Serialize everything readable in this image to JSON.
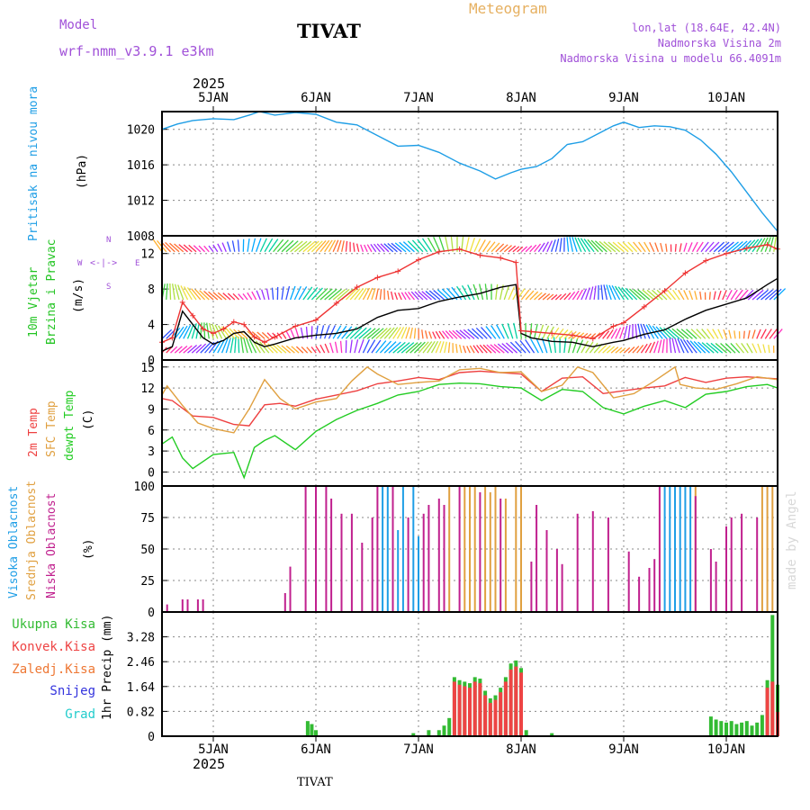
{
  "header": {
    "model_label": "Model",
    "model_name": "wrf-nmm_v3.9.1  e3km",
    "station": "TIVAT",
    "title": "Meteogram",
    "coords": "lon,lat (18.64E, 42.4N)",
    "elevation": "Nadmorska Visina 2m",
    "model_elevation": "Nadmorska Visina u modelu 66.4091m",
    "footer_station": "TIVAT",
    "watermark": "made by Angel"
  },
  "colors": {
    "model": "#a050d8",
    "title": "#e6b060",
    "station": "#000000",
    "pressure": "#1e9ee6",
    "wind_title": "#22c422",
    "temp2m": "#ee4040",
    "sfc": "#e0a040",
    "dewpt": "#22cc22",
    "high_cloud": "#1e9ee6",
    "mid_cloud": "#e0a040",
    "low_cloud": "#c0208e",
    "precip_total": "#33bb33",
    "precip_conv": "#ee4444",
    "precip_frozen": "#ee7733",
    "snow": "#3333dd",
    "hail": "#22cccc"
  },
  "chart_data": [
    {
      "type": "line",
      "title": "Pritisak na nivou mora",
      "ylabel": "(hPa)",
      "ylim": [
        1008,
        1022
      ],
      "yticks": [
        "1008",
        "1012",
        "1016",
        "1020"
      ],
      "x_days": [
        4.5,
        10.5
      ],
      "x_ticks": [
        "5JAN",
        "6JAN",
        "7JAN",
        "8JAN",
        "9JAN",
        "10JAN"
      ],
      "year": "2025",
      "series": [
        {
          "name": "MSLP",
          "color": "#1e9ee6",
          "x": [
            4.5,
            4.65,
            4.8,
            5.0,
            5.2,
            5.35,
            5.45,
            5.6,
            5.8,
            6.0,
            6.2,
            6.4,
            6.6,
            6.8,
            7.0,
            7.2,
            7.4,
            7.6,
            7.75,
            7.9,
            8.0,
            8.15,
            8.3,
            8.45,
            8.6,
            8.75,
            8.9,
            9.0,
            9.15,
            9.3,
            9.45,
            9.6,
            9.75,
            9.9,
            10.05,
            10.2,
            10.35,
            10.5
          ],
          "values": [
            1020,
            1020.6,
            1021,
            1021.2,
            1021.1,
            1021.6,
            1022,
            1021.6,
            1021.9,
            1021.7,
            1020.8,
            1020.5,
            1019.3,
            1018.1,
            1018.2,
            1017.4,
            1016.2,
            1015.3,
            1014.4,
            1015.1,
            1015.5,
            1015.8,
            1016.7,
            1018.3,
            1018.6,
            1019.5,
            1020.4,
            1020.8,
            1020.2,
            1020.4,
            1020.3,
            1019.9,
            1018.8,
            1017.2,
            1015.2,
            1012.9,
            1010.6,
            1008.5
          ]
        }
      ]
    },
    {
      "type": "line",
      "title": "10m Vjetar",
      "subtitle": "Brzina i Pravac",
      "ylabel": "(m/s)",
      "ylim": [
        0,
        14
      ],
      "yticks": [
        "0",
        "4",
        "8",
        "12"
      ],
      "compass": {
        "n": "N",
        "w": "W",
        "e": "E",
        "s": "S"
      },
      "series": [
        {
          "name": "Speed",
          "color": "#000000",
          "x": [
            4.5,
            4.6,
            4.7,
            4.8,
            4.9,
            5.0,
            5.1,
            5.2,
            5.3,
            5.4,
            5.5,
            5.6,
            5.8,
            6.0,
            6.2,
            6.4,
            6.6,
            6.8,
            7.0,
            7.2,
            7.4,
            7.6,
            7.8,
            7.95,
            8.0,
            8.1,
            8.3,
            8.5,
            8.7,
            8.9,
            9.0,
            9.2,
            9.4,
            9.6,
            9.8,
            10.0,
            10.2,
            10.4,
            10.5
          ],
          "values": [
            1,
            1.5,
            5.5,
            4,
            2.5,
            1.8,
            2.2,
            3,
            3.2,
            2,
            1.5,
            1.8,
            2.5,
            2.8,
            3,
            3.5,
            4.8,
            5.6,
            5.8,
            6.6,
            7.1,
            7.5,
            8.2,
            8.5,
            3,
            2.5,
            2.1,
            2,
            1.5,
            2,
            2.2,
            2.9,
            3.4,
            4.6,
            5.6,
            6.3,
            7,
            8.5,
            9.2
          ]
        },
        {
          "name": "Gust",
          "color": "#ee3333",
          "x": [
            4.5,
            4.6,
            4.7,
            4.8,
            4.9,
            5.0,
            5.1,
            5.2,
            5.3,
            5.4,
            5.5,
            5.6,
            5.8,
            6.0,
            6.2,
            6.4,
            6.6,
            6.8,
            7.0,
            7.2,
            7.4,
            7.6,
            7.8,
            7.95,
            8.0,
            8.1,
            8.3,
            8.5,
            8.7,
            8.9,
            9.0,
            9.2,
            9.4,
            9.6,
            9.8,
            10.0,
            10.2,
            10.4,
            10.5
          ],
          "values": [
            2,
            2.5,
            6.5,
            5,
            3.5,
            3,
            3.5,
            4.3,
            4,
            2.6,
            2,
            2.6,
            3.8,
            4.5,
            6.4,
            8.2,
            9.3,
            10,
            11.3,
            12.2,
            12.5,
            11.8,
            11.5,
            11,
            3.3,
            3.2,
            3,
            2.8,
            2.4,
            3.8,
            4.2,
            6,
            7.8,
            9.8,
            11.2,
            12,
            12.6,
            13,
            12.5
          ]
        }
      ]
    },
    {
      "type": "line",
      "title": "2m Temp",
      "subtitle": "SFC Temp",
      "subtitle2": "dewpt Temp",
      "ylabel": "(C)",
      "ylim": [
        -2,
        16
      ],
      "yticks": [
        "0",
        "3",
        "6",
        "9",
        "12",
        "15"
      ],
      "series": [
        {
          "name": "2m Temp",
          "color": "#ee4040",
          "x": [
            4.5,
            4.6,
            4.8,
            5.0,
            5.2,
            5.35,
            5.5,
            5.65,
            5.8,
            6.0,
            6.2,
            6.4,
            6.6,
            6.8,
            7.0,
            7.2,
            7.4,
            7.6,
            7.8,
            8.0,
            8.2,
            8.4,
            8.6,
            8.8,
            9.0,
            9.2,
            9.4,
            9.6,
            9.8,
            10.0,
            10.2,
            10.4,
            10.5
          ],
          "values": [
            10.5,
            10.2,
            8,
            7.8,
            6.8,
            6.6,
            9.6,
            9.8,
            9.4,
            10.4,
            11,
            11.6,
            12.6,
            13,
            13.5,
            13.2,
            14.2,
            14.4,
            14.2,
            14,
            11.5,
            13.4,
            13.6,
            11.2,
            11.6,
            12,
            12.3,
            13.5,
            12.8,
            13.4,
            13.6,
            13.4,
            13.3
          ]
        },
        {
          "name": "SFC Temp",
          "color": "#e0a040",
          "x": [
            4.5,
            4.55,
            4.7,
            4.85,
            5.0,
            5.2,
            5.35,
            5.5,
            5.65,
            5.8,
            6.0,
            6.2,
            6.35,
            6.5,
            6.6,
            6.8,
            7.0,
            7.2,
            7.4,
            7.6,
            7.8,
            8.0,
            8.2,
            8.4,
            8.55,
            8.7,
            8.9,
            9.1,
            9.3,
            9.5,
            9.55,
            9.7,
            9.9,
            10.1,
            10.3,
            10.5
          ],
          "values": [
            11,
            12.3,
            9.5,
            7,
            6.2,
            5.6,
            9,
            13.2,
            10.5,
            9,
            10,
            10.5,
            13,
            15,
            14,
            12.5,
            12.8,
            13,
            14.6,
            14.8,
            14.2,
            14.3,
            11.5,
            12.4,
            15,
            14.2,
            10.6,
            11.2,
            13,
            15,
            12.5,
            12,
            11.8,
            12.6,
            13.6,
            13.2
          ]
        },
        {
          "name": "dewpt Temp",
          "color": "#22cc22",
          "x": [
            4.5,
            4.6,
            4.7,
            4.8,
            4.9,
            5.0,
            5.2,
            5.3,
            5.4,
            5.5,
            5.6,
            5.8,
            6.0,
            6.2,
            6.4,
            6.6,
            6.8,
            7.0,
            7.2,
            7.4,
            7.6,
            7.8,
            8.0,
            8.2,
            8.4,
            8.6,
            8.8,
            9.0,
            9.2,
            9.4,
            9.6,
            9.8,
            10.0,
            10.2,
            10.4,
            10.5
          ],
          "values": [
            4,
            5,
            2,
            0.5,
            1.5,
            2.5,
            2.8,
            -0.8,
            3.5,
            4.5,
            5.2,
            3.2,
            5.8,
            7.5,
            8.8,
            9.8,
            11,
            11.5,
            12.5,
            12.7,
            12.6,
            12.2,
            12,
            10.2,
            11.8,
            11.5,
            9.2,
            8.3,
            9.4,
            10.2,
            9.2,
            11.1,
            11.5,
            12.2,
            12.5,
            12
          ]
        }
      ]
    },
    {
      "type": "bar",
      "title": "Visoka Oblacnost",
      "subtitle": "Srednja Oblacnost",
      "subtitle2": "Niska Oblacnost",
      "ylabel": "(%)",
      "ylim": [
        0,
        100
      ],
      "yticks": [
        "0",
        "25",
        "50",
        "75",
        "100"
      ],
      "series": [
        {
          "name": "High",
          "color": "#1e9ee6",
          "x": [
            6.65,
            6.7,
            6.8,
            6.85,
            6.95,
            7.0,
            9.4,
            9.45,
            9.5,
            9.55,
            9.6,
            9.65
          ],
          "values": [
            100,
            100,
            65,
            100,
            100,
            60,
            100,
            100,
            100,
            100,
            100,
            100
          ]
        },
        {
          "name": "Mid",
          "color": "#e0a040",
          "x": [
            7.3,
            7.45,
            7.5,
            7.55,
            7.65,
            7.7,
            7.75,
            7.85,
            7.95,
            8.0,
            9.7,
            10.35,
            10.4,
            10.45
          ],
          "values": [
            100,
            100,
            100,
            100,
            100,
            95,
            100,
            90,
            100,
            100,
            100,
            100,
            100,
            100
          ]
        },
        {
          "name": "Low",
          "color": "#c0208e",
          "x": [
            4.55,
            4.7,
            4.75,
            4.85,
            4.9,
            5.7,
            5.75,
            5.9,
            6.0,
            6.1,
            6.15,
            6.25,
            6.35,
            6.45,
            6.55,
            6.6,
            6.75,
            6.9,
            7.05,
            7.1,
            7.2,
            7.25,
            7.4,
            7.6,
            7.8,
            8.1,
            8.15,
            8.25,
            8.35,
            8.4,
            8.55,
            8.7,
            8.85,
            9.05,
            9.15,
            9.25,
            9.3,
            9.35,
            9.7,
            9.85,
            9.9,
            10.0,
            10.05,
            10.15,
            10.3
          ],
          "values": [
            6,
            10,
            10,
            10,
            10,
            15,
            36,
            100,
            100,
            100,
            90,
            78,
            78,
            55,
            75,
            100,
            100,
            75,
            78,
            85,
            90,
            85,
            100,
            95,
            90,
            40,
            85,
            65,
            50,
            38,
            78,
            80,
            75,
            48,
            28,
            35,
            42,
            100,
            92,
            50,
            40,
            68,
            75,
            78,
            75
          ]
        }
      ]
    },
    {
      "type": "bar",
      "title": "Ukupna Kisa",
      "subtitle": "Konvek.Kisa",
      "subtitle2": "Zaledj.Kisa",
      "subtitle3": "Snijeg",
      "subtitle4": "Grad",
      "ylabel": "1hr Precip (mm)",
      "ylim": [
        0,
        4.1
      ],
      "yticks": [
        "0",
        "0.82",
        "1.64",
        "2.46",
        "3.28"
      ],
      "series": [
        {
          "name": "Total",
          "color": "#33bb33",
          "x": [
            5.92,
            5.96,
            6.0,
            6.95,
            7.1,
            7.2,
            7.25,
            7.3,
            7.35,
            7.4,
            7.45,
            7.5,
            7.55,
            7.6,
            7.65,
            7.7,
            7.75,
            7.8,
            7.85,
            7.9,
            7.95,
            8.0,
            8.05,
            8.3,
            9.85,
            9.9,
            9.95,
            10.0,
            10.05,
            10.1,
            10.15,
            10.2,
            10.25,
            10.3,
            10.35,
            10.4,
            10.45,
            10.5
          ],
          "values": [
            0.5,
            0.4,
            0.2,
            0.1,
            0.2,
            0.2,
            0.35,
            0.6,
            1.95,
            1.85,
            1.8,
            1.75,
            1.95,
            1.9,
            1.5,
            1.25,
            1.35,
            1.6,
            1.95,
            2.4,
            2.5,
            2.25,
            0.2,
            0.1,
            0.65,
            0.55,
            0.5,
            0.45,
            0.5,
            0.4,
            0.45,
            0.5,
            0.35,
            0.45,
            0.7,
            1.85,
            4.0,
            1.7
          ]
        },
        {
          "name": "Convective",
          "color": "#ee4444",
          "x": [
            7.35,
            7.4,
            7.45,
            7.5,
            7.55,
            7.6,
            7.65,
            7.7,
            7.75,
            7.8,
            7.85,
            7.9,
            7.95,
            8.0,
            10.4,
            10.45,
            10.5
          ],
          "values": [
            1.8,
            1.7,
            1.65,
            1.6,
            1.8,
            1.75,
            1.35,
            1.1,
            1.2,
            1.45,
            1.8,
            2.2,
            2.3,
            2.1,
            1.6,
            1.8,
            0.8
          ]
        }
      ]
    }
  ]
}
